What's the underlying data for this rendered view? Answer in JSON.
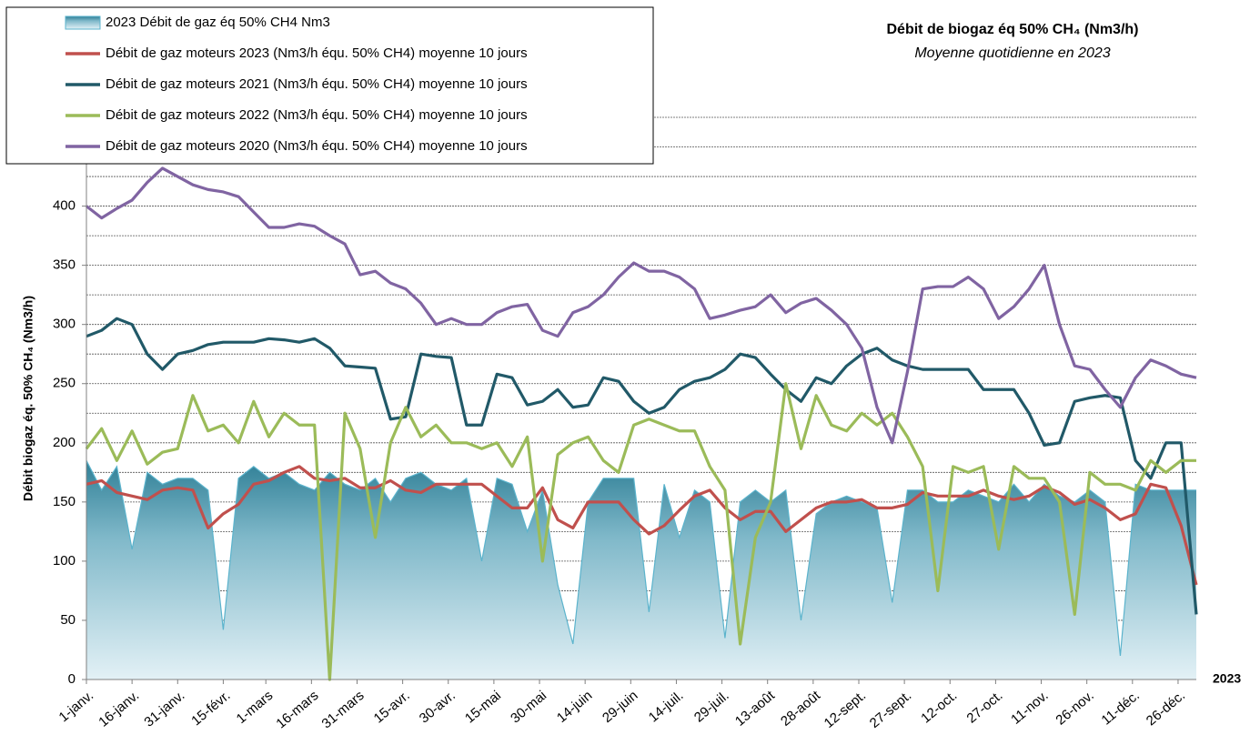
{
  "chart_data": {
    "type": "line",
    "title": "Débit de biogaz éq 50% CH₄ (Nm3/h)",
    "subtitle": "Moyenne quotidienne en 2023",
    "y_label": "Débit biogaz éq. 50% CH₄ (Nm3/h)",
    "x_note": "2023",
    "xlim": [
      0,
      365
    ],
    "xticks": [
      {
        "value": 0,
        "label": "1-janv."
      },
      {
        "value": 15,
        "label": "16-janv."
      },
      {
        "value": 30,
        "label": "31-janv."
      },
      {
        "value": 45,
        "label": "15-févr."
      },
      {
        "value": 59,
        "label": "1-mars"
      },
      {
        "value": 74,
        "label": "16-mars"
      },
      {
        "value": 89,
        "label": "31-mars"
      },
      {
        "value": 104,
        "label": "15-avr."
      },
      {
        "value": 119,
        "label": "30-avr."
      },
      {
        "value": 134,
        "label": "15-mai"
      },
      {
        "value": 149,
        "label": "30-mai"
      },
      {
        "value": 164,
        "label": "14-juin"
      },
      {
        "value": 179,
        "label": "29-juin"
      },
      {
        "value": 194,
        "label": "14-juil."
      },
      {
        "value": 209,
        "label": "29-juil."
      },
      {
        "value": 224,
        "label": "13-août"
      },
      {
        "value": 239,
        "label": "28-août"
      },
      {
        "value": 254,
        "label": "12-sept."
      },
      {
        "value": 269,
        "label": "27-sept."
      },
      {
        "value": 284,
        "label": "12-oct."
      },
      {
        "value": 299,
        "label": "27-oct."
      },
      {
        "value": 314,
        "label": "11-nov."
      },
      {
        "value": 329,
        "label": "26-nov."
      },
      {
        "value": 344,
        "label": "11-déc."
      },
      {
        "value": 359,
        "label": "26-déc."
      }
    ],
    "ylim": [
      0,
      475
    ],
    "yticks": [
      0,
      50,
      100,
      150,
      200,
      250,
      300,
      350,
      400
    ],
    "ygrid": [
      25,
      50,
      75,
      100,
      125,
      150,
      175,
      200,
      225,
      250,
      275,
      300,
      325,
      350,
      375,
      400,
      425,
      450,
      475
    ],
    "x": [
      0,
      5,
      10,
      15,
      20,
      25,
      30,
      35,
      40,
      45,
      50,
      55,
      60,
      65,
      70,
      75,
      80,
      85,
      90,
      95,
      100,
      105,
      110,
      115,
      120,
      125,
      130,
      135,
      140,
      145,
      150,
      155,
      160,
      165,
      170,
      175,
      180,
      185,
      190,
      195,
      200,
      205,
      210,
      215,
      220,
      225,
      230,
      235,
      240,
      245,
      250,
      255,
      260,
      265,
      270,
      275,
      280,
      285,
      290,
      295,
      300,
      305,
      310,
      315,
      320,
      325,
      330,
      335,
      340,
      345,
      350,
      355,
      360,
      365
    ],
    "series": [
      {
        "name": "2023 Débit de gaz éq 50% CH4 Nm3",
        "type": "area",
        "color": "#3f8fa6",
        "values": [
          185,
          160,
          180,
          110,
          175,
          165,
          170,
          170,
          160,
          42,
          170,
          180,
          170,
          175,
          165,
          160,
          175,
          165,
          160,
          170,
          150,
          170,
          175,
          165,
          160,
          170,
          100,
          170,
          165,
          125,
          160,
          80,
          30,
          150,
          170,
          170,
          170,
          57,
          165,
          120,
          160,
          150,
          35,
          150,
          160,
          150,
          160,
          50,
          140,
          150,
          155,
          150,
          145,
          65,
          160,
          160,
          150,
          150,
          160,
          155,
          150,
          165,
          150,
          165,
          155,
          150,
          160,
          150,
          20,
          165,
          160,
          160,
          160,
          160
        ]
      },
      {
        "name": "Débit de gaz moteurs 2023 (Nm3/h équ. 50% CH4) moyenne 10 jours",
        "color": "#c0504d",
        "values": [
          165,
          168,
          158,
          155,
          152,
          160,
          162,
          160,
          128,
          140,
          148,
          165,
          168,
          175,
          180,
          170,
          168,
          170,
          162,
          162,
          168,
          160,
          158,
          165,
          165,
          165,
          165,
          155,
          145,
          145,
          162,
          135,
          128,
          150,
          150,
          150,
          135,
          123,
          130,
          143,
          155,
          160,
          145,
          135,
          142,
          142,
          125,
          135,
          145,
          150,
          150,
          152,
          145,
          145,
          148,
          158,
          155,
          155,
          155,
          160,
          155,
          152,
          155,
          163,
          158,
          148,
          152,
          145,
          135,
          140,
          165,
          162,
          130,
          80
        ]
      },
      {
        "name": "Débit de gaz moteurs 2021 (Nm3/h équ. 50% CH4) moyenne 10 jours",
        "color": "#215968",
        "values": [
          290,
          295,
          305,
          300,
          275,
          262,
          275,
          278,
          283,
          285,
          285,
          285,
          288,
          287,
          285,
          288,
          280,
          265,
          264,
          263,
          220,
          222,
          275,
          273,
          272,
          215,
          215,
          258,
          255,
          232,
          235,
          245,
          230,
          232,
          255,
          252,
          235,
          225,
          230,
          245,
          252,
          255,
          262,
          275,
          272,
          258,
          245,
          235,
          255,
          250,
          265,
          275,
          280,
          270,
          265,
          262,
          262,
          262,
          262,
          245,
          245,
          245,
          225,
          198,
          200,
          235,
          238,
          240,
          238,
          185,
          170,
          200,
          200,
          55
        ]
      },
      {
        "name": "Débit de gaz moteurs 2022 (Nm3/h équ. 50% CH4) moyenne 10 jours",
        "color": "#9bbb59",
        "values": [
          195,
          212,
          185,
          210,
          182,
          192,
          195,
          240,
          210,
          215,
          200,
          235,
          205,
          225,
          215,
          215,
          0,
          225,
          195,
          120,
          200,
          230,
          205,
          215,
          200,
          200,
          195,
          200,
          180,
          205,
          100,
          190,
          200,
          205,
          185,
          175,
          215,
          220,
          215,
          210,
          210,
          180,
          160,
          30,
          120,
          150,
          250,
          195,
          240,
          215,
          210,
          225,
          215,
          225,
          205,
          180,
          75,
          180,
          175,
          180,
          110,
          180,
          170,
          170,
          150,
          55,
          175,
          165,
          165,
          160,
          185,
          175,
          185,
          185
        ]
      },
      {
        "name": "Débit de gaz moteurs 2020 (Nm3/h équ. 50% CH4) moyenne 10 jours",
        "color": "#8064a2",
        "values": [
          400,
          390,
          398,
          405,
          420,
          432,
          425,
          418,
          414,
          412,
          408,
          395,
          382,
          382,
          385,
          383,
          375,
          368,
          342,
          345,
          335,
          330,
          318,
          300,
          305,
          300,
          300,
          310,
          315,
          317,
          295,
          290,
          310,
          315,
          325,
          340,
          352,
          345,
          345,
          340,
          330,
          305,
          308,
          312,
          315,
          325,
          310,
          318,
          322,
          312,
          300,
          280,
          230,
          200,
          260,
          330,
          332,
          332,
          340,
          330,
          305,
          315,
          330,
          350,
          300,
          265,
          262,
          245,
          230,
          255,
          270,
          265,
          258,
          255
        ]
      }
    ]
  }
}
